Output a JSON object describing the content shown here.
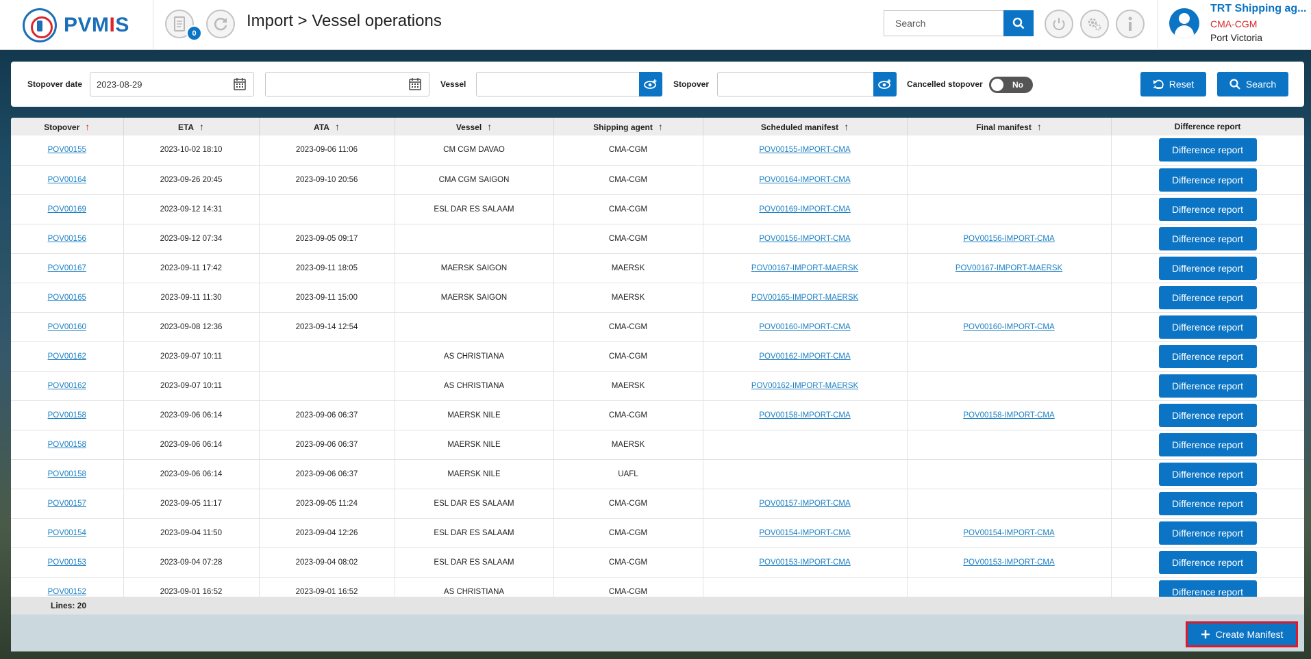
{
  "app": {
    "logo_text_pre": "PVM",
    "logo_text_i": "I",
    "logo_text_post": "S",
    "notification_count": "0",
    "page_title": "Import > Vessel operations"
  },
  "header_search": {
    "placeholder": "Search"
  },
  "user": {
    "name": "TRT Shipping ag...",
    "company": "CMA-CGM",
    "port": "Port Victoria"
  },
  "filters": {
    "stopover_date_label": "Stopover date",
    "stopover_date_from": "2023-08-29",
    "stopover_date_to": "",
    "vessel_label": "Vessel",
    "vessel_value": "",
    "stopover_label": "Stopover",
    "stopover_value": "",
    "cancelled_label": "Cancelled stopover",
    "cancelled_value": "No",
    "reset_label": "Reset",
    "search_label": "Search"
  },
  "table": {
    "columns": [
      "Stopover",
      "ETA",
      "ATA",
      "Vessel",
      "Shipping agent",
      "Scheduled manifest",
      "Final manifest",
      "Difference report"
    ],
    "diff_button_label": "Difference report",
    "rows": [
      {
        "stopover": "POV00155",
        "eta": "2023-10-02 18:10",
        "ata": "2023-09-06 11:06",
        "vessel": "CM CGM DAVAO",
        "agent": "CMA-CGM",
        "scheduled": "POV00155-IMPORT-CMA",
        "final": ""
      },
      {
        "stopover": "POV00164",
        "eta": "2023-09-26 20:45",
        "ata": "2023-09-10 20:56",
        "vessel": "CMA CGM SAIGON",
        "agent": "CMA-CGM",
        "scheduled": "POV00164-IMPORT-CMA",
        "final": ""
      },
      {
        "stopover": "POV00169",
        "eta": "2023-09-12 14:31",
        "ata": "",
        "vessel": "ESL DAR ES SALAAM",
        "agent": "CMA-CGM",
        "scheduled": "POV00169-IMPORT-CMA",
        "final": ""
      },
      {
        "stopover": "POV00156",
        "eta": "2023-09-12 07:34",
        "ata": "2023-09-05 09:17",
        "vessel": "",
        "agent": "CMA-CGM",
        "scheduled": "POV00156-IMPORT-CMA",
        "final": "POV00156-IMPORT-CMA"
      },
      {
        "stopover": "POV00167",
        "eta": "2023-09-11 17:42",
        "ata": "2023-09-11 18:05",
        "vessel": "MAERSK SAIGON",
        "agent": "MAERSK",
        "scheduled": "POV00167-IMPORT-MAERSK",
        "final": "POV00167-IMPORT-MAERSK"
      },
      {
        "stopover": "POV00165",
        "eta": "2023-09-11 11:30",
        "ata": "2023-09-11 15:00",
        "vessel": "MAERSK SAIGON",
        "agent": "MAERSK",
        "scheduled": "POV00165-IMPORT-MAERSK",
        "final": ""
      },
      {
        "stopover": "POV00160",
        "eta": "2023-09-08 12:36",
        "ata": "2023-09-14 12:54",
        "vessel": "",
        "agent": "CMA-CGM",
        "scheduled": "POV00160-IMPORT-CMA",
        "final": "POV00160-IMPORT-CMA"
      },
      {
        "stopover": "POV00162",
        "eta": "2023-09-07 10:11",
        "ata": "",
        "vessel": "AS CHRISTIANA",
        "agent": "CMA-CGM",
        "scheduled": "POV00162-IMPORT-CMA",
        "final": ""
      },
      {
        "stopover": "POV00162",
        "eta": "2023-09-07 10:11",
        "ata": "",
        "vessel": "AS CHRISTIANA",
        "agent": "MAERSK",
        "scheduled": "POV00162-IMPORT-MAERSK",
        "final": ""
      },
      {
        "stopover": "POV00158",
        "eta": "2023-09-06 06:14",
        "ata": "2023-09-06 06:37",
        "vessel": "MAERSK NILE",
        "agent": "CMA-CGM",
        "scheduled": "POV00158-IMPORT-CMA",
        "final": "POV00158-IMPORT-CMA"
      },
      {
        "stopover": "POV00158",
        "eta": "2023-09-06 06:14",
        "ata": "2023-09-06 06:37",
        "vessel": "MAERSK NILE",
        "agent": "MAERSK",
        "scheduled": "",
        "final": ""
      },
      {
        "stopover": "POV00158",
        "eta": "2023-09-06 06:14",
        "ata": "2023-09-06 06:37",
        "vessel": "MAERSK NILE",
        "agent": "UAFL",
        "scheduled": "",
        "final": ""
      },
      {
        "stopover": "POV00157",
        "eta": "2023-09-05 11:17",
        "ata": "2023-09-05 11:24",
        "vessel": "ESL DAR ES SALAAM",
        "agent": "CMA-CGM",
        "scheduled": "POV00157-IMPORT-CMA",
        "final": ""
      },
      {
        "stopover": "POV00154",
        "eta": "2023-09-04 11:50",
        "ata": "2023-09-04 12:26",
        "vessel": "ESL DAR ES SALAAM",
        "agent": "CMA-CGM",
        "scheduled": "POV00154-IMPORT-CMA",
        "final": "POV00154-IMPORT-CMA"
      },
      {
        "stopover": "POV00153",
        "eta": "2023-09-04 07:28",
        "ata": "2023-09-04 08:02",
        "vessel": "ESL DAR ES SALAAM",
        "agent": "CMA-CGM",
        "scheduled": "POV00153-IMPORT-CMA",
        "final": "POV00153-IMPORT-CMA"
      },
      {
        "stopover": "POV00152",
        "eta": "2023-09-01 16:52",
        "ata": "2023-09-01 16:52",
        "vessel": "AS CHRISTIANA",
        "agent": "CMA-CGM",
        "scheduled": "",
        "final": ""
      }
    ],
    "lines_label": "Lines: 20"
  },
  "footer": {
    "create_manifest_label": "Create Manifest"
  },
  "colors": {
    "primary": "#0b74c4",
    "accent_red": "#d9262c",
    "link": "#1a7fc4"
  }
}
